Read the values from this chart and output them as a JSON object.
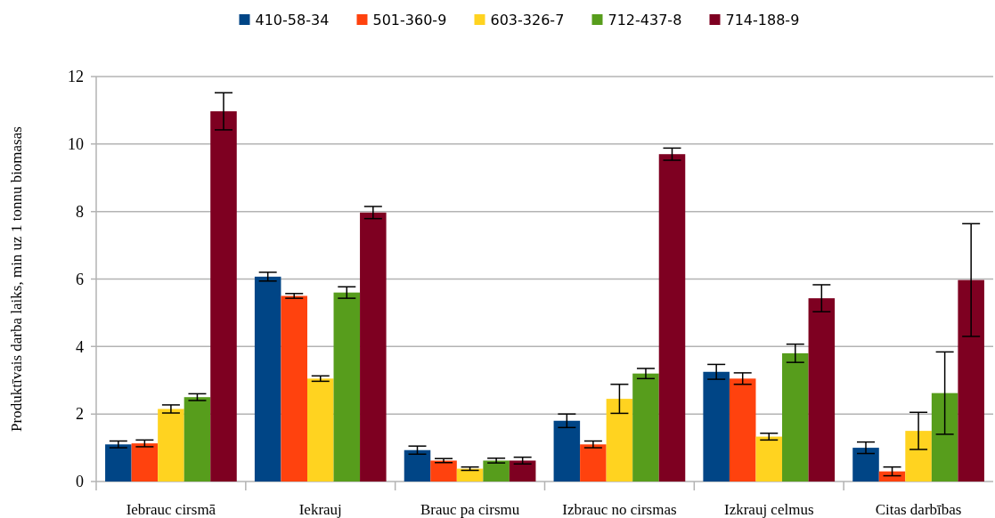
{
  "chart_data": {
    "type": "bar",
    "ylabel": "Produktīvais darba laiks, min uz 1 tonnu biomasas",
    "categories": [
      "Iebrauc cirsmā",
      "Iekrauj",
      "Brauc pa cirsmu",
      "Izbrauc no cirsmas",
      "Izkrauj celmus",
      "Citas darbības"
    ],
    "series": [
      {
        "name": "410-58-34",
        "color": "#004586",
        "values": [
          1.1,
          6.07,
          0.93,
          1.8,
          3.25,
          1.0
        ],
        "errors": [
          0.1,
          0.13,
          0.12,
          0.2,
          0.22,
          0.17
        ]
      },
      {
        "name": "501-360-9",
        "color": "#ff420e",
        "values": [
          1.13,
          5.5,
          0.62,
          1.1,
          3.05,
          0.3
        ],
        "errors": [
          0.1,
          0.07,
          0.06,
          0.1,
          0.17,
          0.13
        ]
      },
      {
        "name": "603-326-7",
        "color": "#ffd320",
        "values": [
          2.15,
          3.05,
          0.38,
          2.45,
          1.33,
          1.5
        ],
        "errors": [
          0.12,
          0.08,
          0.05,
          0.43,
          0.1,
          0.55
        ]
      },
      {
        "name": "712-437-8",
        "color": "#579d1c",
        "values": [
          2.5,
          5.6,
          0.62,
          3.2,
          3.8,
          2.62
        ],
        "errors": [
          0.1,
          0.17,
          0.07,
          0.15,
          0.27,
          1.22
        ]
      },
      {
        "name": "714-188-9",
        "color": "#7e0021",
        "values": [
          10.97,
          7.97,
          0.62,
          9.7,
          5.43,
          5.97
        ],
        "errors": [
          0.55,
          0.18,
          0.1,
          0.18,
          0.4,
          1.67
        ]
      }
    ],
    "ylim": [
      0,
      12
    ],
    "yticks": [
      0,
      2,
      4,
      6,
      8,
      10,
      12
    ],
    "grid": "y",
    "legend": "top"
  }
}
